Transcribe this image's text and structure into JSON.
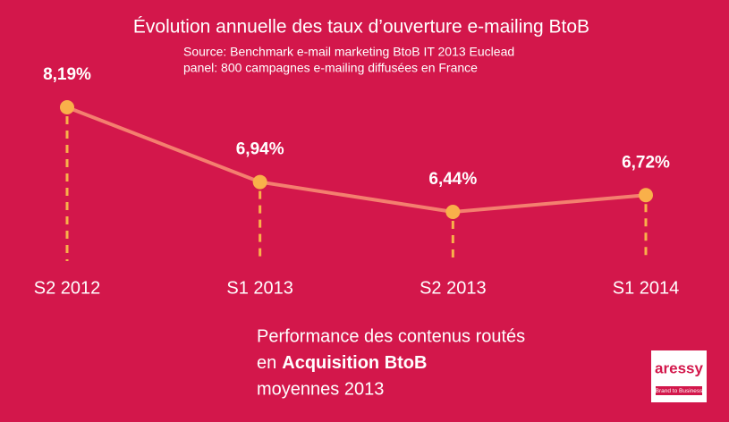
{
  "chart_data": {
    "type": "line",
    "title": "Évolution annuelle des taux d’ouverture e-mailing BtoB",
    "subtitle": [
      "Source: Benchmark e-mail marketing BtoB IT 2013 Euclead",
      "panel: 800 campagnes e-mailing diffusées en France"
    ],
    "categories": [
      "S2 2012",
      "S1 2013",
      "S2 2013",
      "S1 2014"
    ],
    "values": [
      8.19,
      6.94,
      6.44,
      6.72
    ],
    "value_labels": [
      "8,19%",
      "6,94%",
      "6,44%",
      "6,72%"
    ],
    "line_color": "#f47f6f",
    "marker_color": "#f9b04a"
  },
  "footer": {
    "lines": [
      "Performance des contenus routés",
      "en",
      "Acquisition BtoB",
      "moyennes 2013"
    ]
  },
  "logo": {
    "name": "aressy",
    "tagline": "Brand to Business"
  }
}
